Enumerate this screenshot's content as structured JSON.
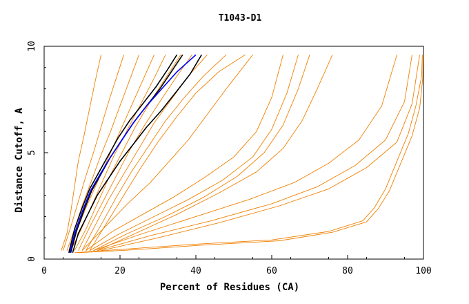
{
  "chart_data": {
    "type": "line",
    "title": "T1043-D1",
    "xlabel": "Percent of Residues (CA)",
    "ylabel": "Distance Cutoff, A",
    "xlim": [
      0,
      100
    ],
    "ylim": [
      0,
      10
    ],
    "xticks": [
      "0",
      "20",
      "40",
      "60",
      "80",
      "100"
    ],
    "yticks": [
      "0",
      "5",
      "10"
    ],
    "grid": false,
    "legend": "none",
    "colors": {
      "models": "#f08000",
      "highlight_black": "#000000",
      "highlight_blue": "#0000ff"
    },
    "series": [
      {
        "group": "models",
        "x": [
          4.5,
          6,
          7,
          8,
          9,
          10.5,
          12,
          13.5,
          15
        ],
        "y": [
          0.4,
          1.2,
          2.2,
          3.4,
          4.6,
          5.8,
          7.1,
          8.4,
          9.6
        ]
      },
      {
        "group": "models",
        "x": [
          5,
          7,
          9,
          11,
          13,
          15,
          17,
          19,
          21
        ],
        "y": [
          0.4,
          1.5,
          2.7,
          3.9,
          5,
          6.2,
          7.4,
          8.5,
          9.6
        ]
      },
      {
        "group": "models",
        "x": [
          6,
          8,
          10,
          12.5,
          15,
          17.5,
          20,
          22.5,
          25
        ],
        "y": [
          0.4,
          1.4,
          2.5,
          3.7,
          4.9,
          6,
          7.2,
          8.4,
          9.6
        ]
      },
      {
        "group": "models",
        "x": [
          6.5,
          8.5,
          11,
          14,
          17,
          20,
          23,
          26,
          29
        ],
        "y": [
          0.4,
          1.3,
          2.4,
          3.6,
          4.8,
          6,
          7.2,
          8.4,
          9.6
        ]
      },
      {
        "group": "models",
        "x": [
          7,
          9.5,
          12.5,
          15.5,
          18.5,
          22,
          25.5,
          29,
          32
        ],
        "y": [
          0.4,
          1.3,
          2.5,
          3.7,
          4.9,
          6.1,
          7.3,
          8.5,
          9.6
        ]
      },
      {
        "group": "models",
        "x": [
          8,
          11,
          14,
          17,
          20.5,
          24,
          28,
          32,
          36
        ],
        "y": [
          0.4,
          1.4,
          2.6,
          3.8,
          5,
          6.2,
          7.4,
          8.5,
          9.6
        ]
      },
      {
        "group": "models",
        "x": [
          9,
          12,
          15.5,
          19,
          22.5,
          26.5,
          30.5,
          35,
          39
        ],
        "y": [
          0.4,
          1.5,
          2.7,
          3.9,
          5.1,
          6.3,
          7.4,
          8.6,
          9.6
        ]
      },
      {
        "group": "models",
        "x": [
          10,
          13.5,
          17,
          21,
          25,
          29,
          33.5,
          38,
          43
        ],
        "y": [
          0.4,
          1.6,
          2.8,
          4,
          5.2,
          6.4,
          7.5,
          8.6,
          9.6
        ]
      },
      {
        "group": "models",
        "x": [
          11,
          15,
          19,
          23,
          27.5,
          32,
          37,
          42,
          48
        ],
        "y": [
          0.4,
          1.6,
          2.9,
          4.1,
          5.3,
          6.5,
          7.6,
          8.6,
          9.6
        ]
      },
      {
        "group": "models",
        "x": [
          12,
          16.5,
          21,
          25.5,
          30,
          35,
          40,
          46,
          53
        ],
        "y": [
          0.4,
          1.7,
          3,
          4.3,
          5.5,
          6.7,
          7.8,
          8.8,
          9.6
        ]
      },
      {
        "group": "models",
        "x": [
          10,
          16,
          22,
          28,
          33,
          38,
          43,
          48,
          55
        ],
        "y": [
          0.4,
          1.5,
          2.6,
          3.6,
          4.6,
          5.6,
          6.8,
          8,
          9.6
        ]
      },
      {
        "group": "models",
        "x": [
          11,
          18,
          26,
          34,
          42,
          50,
          56,
          60,
          63
        ],
        "y": [
          0.4,
          1.3,
          2.1,
          2.9,
          3.8,
          4.8,
          6,
          7.6,
          9.6
        ]
      },
      {
        "group": "models",
        "x": [
          12,
          20,
          29,
          38,
          47,
          55,
          60,
          64,
          67
        ],
        "y": [
          0.4,
          1.2,
          2,
          2.8,
          3.7,
          4.8,
          6.1,
          7.8,
          9.6
        ]
      },
      {
        "group": "models",
        "x": [
          13,
          22,
          32,
          42,
          51,
          58,
          63,
          67,
          70
        ],
        "y": [
          0.4,
          1.2,
          2,
          2.9,
          3.9,
          5,
          6.3,
          8,
          9.6
        ]
      },
      {
        "group": "models",
        "x": [
          14,
          24,
          35,
          46,
          56,
          63,
          68,
          72,
          76
        ],
        "y": [
          0.4,
          1.2,
          2.1,
          3.1,
          4.1,
          5.2,
          6.5,
          8,
          9.6
        ]
      },
      {
        "group": "models",
        "x": [
          13,
          26,
          40,
          54,
          66,
          75,
          83,
          89,
          93
        ],
        "y": [
          0.4,
          1.2,
          2,
          2.8,
          3.6,
          4.5,
          5.6,
          7.2,
          9.6
        ]
      },
      {
        "group": "models",
        "x": [
          14,
          28,
          44,
          60,
          72,
          82,
          90,
          95,
          97
        ],
        "y": [
          0.4,
          1.1,
          1.8,
          2.6,
          3.4,
          4.4,
          5.6,
          7.4,
          9.6
        ]
      },
      {
        "group": "models",
        "x": [
          15,
          30,
          46,
          62,
          75,
          85,
          93,
          97,
          99
        ],
        "y": [
          0.4,
          1,
          1.7,
          2.5,
          3.3,
          4.3,
          5.5,
          7.3,
          9.6
        ]
      },
      {
        "group": "models",
        "x": [
          8,
          20,
          40,
          60,
          75,
          84,
          87,
          90,
          93,
          96,
          98,
          99.5,
          99.7
        ],
        "y": [
          0.3,
          0.45,
          0.7,
          0.9,
          1.3,
          1.8,
          2.4,
          3.3,
          4.6,
          5.9,
          7.2,
          8.6,
          9.6
        ]
      },
      {
        "group": "models",
        "x": [
          9,
          22,
          42,
          62,
          76,
          85,
          88,
          91,
          94,
          97,
          99,
          99.8,
          99.9
        ],
        "y": [
          0.3,
          0.42,
          0.66,
          0.86,
          1.26,
          1.75,
          2.35,
          3.2,
          4.5,
          5.8,
          7.1,
          8.5,
          9.6
        ]
      },
      {
        "group": "highlight_black",
        "x": [
          7,
          8.5,
          10.5,
          12.5,
          15,
          17.5,
          20.5,
          23.5,
          27,
          30.5,
          33.5,
          36.5
        ],
        "y": [
          0.3,
          1.3,
          2.3,
          3.2,
          4,
          4.8,
          5.6,
          6.4,
          7.2,
          8,
          8.8,
          9.6
        ]
      },
      {
        "group": "highlight_black",
        "x": [
          6.5,
          8,
          10,
          12,
          14.5,
          17,
          19.5,
          22.5,
          26,
          29.5,
          32.5,
          35
        ],
        "y": [
          0.3,
          1.4,
          2.4,
          3.3,
          4.1,
          4.9,
          5.7,
          6.5,
          7.3,
          8.1,
          8.9,
          9.6
        ]
      },
      {
        "group": "highlight_black",
        "x": [
          7.5,
          9,
          11.5,
          14,
          17,
          20,
          23.5,
          27,
          31,
          35,
          38.5,
          41.5
        ],
        "y": [
          0.3,
          1.2,
          2.1,
          3,
          3.8,
          4.6,
          5.4,
          6.2,
          7,
          7.9,
          8.7,
          9.6
        ]
      },
      {
        "group": "highlight_blue",
        "x": [
          6.8,
          8.2,
          10.2,
          12.2,
          14.8,
          17.5,
          20.5,
          23.5,
          27,
          31,
          35,
          40
        ],
        "y": [
          0.3,
          1.3,
          2.3,
          3.2,
          4,
          4.8,
          5.6,
          6.4,
          7.2,
          8,
          8.8,
          9.6
        ]
      }
    ]
  }
}
